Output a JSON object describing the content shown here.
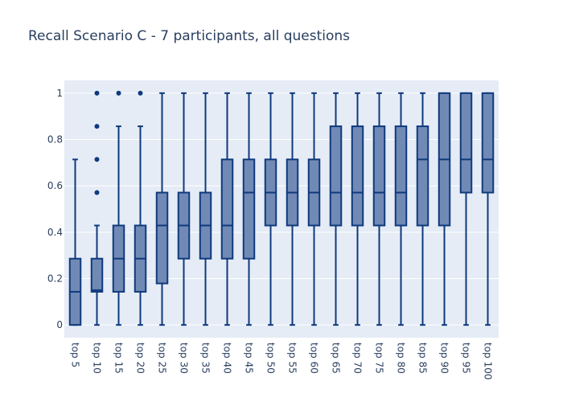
{
  "chart_data": {
    "type": "box",
    "title": "Recall Scenario C - 7 participants, all questions",
    "xlabel": "",
    "ylabel": "",
    "ylim": [
      -0.055,
      1.055
    ],
    "yticks": [
      0,
      0.2,
      0.4,
      0.6,
      0.8,
      1
    ],
    "ytick_labels": [
      "0",
      "0.2",
      "0.4",
      "0.6",
      "0.8",
      "1"
    ],
    "grid": true,
    "legend": "none",
    "colors": {
      "box_fill": "#7189b5",
      "box_line": "#0f3a7d",
      "plot_bg": "#e5ecf6",
      "grid": "#ffffff",
      "text": "#2a3f5f"
    },
    "categories": [
      "top 5",
      "top 10",
      "top 15",
      "top 20",
      "top 25",
      "top 30",
      "top 35",
      "top 40",
      "top 45",
      "top 50",
      "top 55",
      "top 60",
      "top 65",
      "top 70",
      "top 75",
      "top 80",
      "top 85",
      "top 90",
      "top 95",
      "top 100"
    ],
    "boxes": [
      {
        "min": 0,
        "q1": 0,
        "median": 0.143,
        "q3": 0.286,
        "max": 0.714,
        "outliers": []
      },
      {
        "min": 0,
        "q1": 0.143,
        "median": 0.15,
        "q3": 0.286,
        "max": 0.429,
        "outliers": [
          0.571,
          0.714,
          0.857,
          1
        ]
      },
      {
        "min": 0,
        "q1": 0.143,
        "median": 0.286,
        "q3": 0.429,
        "max": 0.857,
        "outliers": [
          1
        ]
      },
      {
        "min": 0,
        "q1": 0.143,
        "median": 0.286,
        "q3": 0.429,
        "max": 0.857,
        "outliers": [
          1
        ]
      },
      {
        "min": 0,
        "q1": 0.179,
        "median": 0.429,
        "q3": 0.571,
        "max": 1,
        "outliers": []
      },
      {
        "min": 0,
        "q1": 0.286,
        "median": 0.429,
        "q3": 0.571,
        "max": 1,
        "outliers": []
      },
      {
        "min": 0,
        "q1": 0.286,
        "median": 0.429,
        "q3": 0.571,
        "max": 1,
        "outliers": []
      },
      {
        "min": 0,
        "q1": 0.286,
        "median": 0.429,
        "q3": 0.714,
        "max": 1,
        "outliers": []
      },
      {
        "min": 0,
        "q1": 0.286,
        "median": 0.571,
        "q3": 0.714,
        "max": 1,
        "outliers": []
      },
      {
        "min": 0,
        "q1": 0.429,
        "median": 0.571,
        "q3": 0.714,
        "max": 1,
        "outliers": []
      },
      {
        "min": 0,
        "q1": 0.429,
        "median": 0.571,
        "q3": 0.714,
        "max": 1,
        "outliers": []
      },
      {
        "min": 0,
        "q1": 0.429,
        "median": 0.571,
        "q3": 0.714,
        "max": 1,
        "outliers": []
      },
      {
        "min": 0,
        "q1": 0.429,
        "median": 0.571,
        "q3": 0.857,
        "max": 1,
        "outliers": []
      },
      {
        "min": 0,
        "q1": 0.429,
        "median": 0.571,
        "q3": 0.857,
        "max": 1,
        "outliers": []
      },
      {
        "min": 0,
        "q1": 0.429,
        "median": 0.571,
        "q3": 0.857,
        "max": 1,
        "outliers": []
      },
      {
        "min": 0,
        "q1": 0.429,
        "median": 0.571,
        "q3": 0.857,
        "max": 1,
        "outliers": []
      },
      {
        "min": 0,
        "q1": 0.429,
        "median": 0.714,
        "q3": 0.857,
        "max": 1,
        "outliers": []
      },
      {
        "min": 0,
        "q1": 0.429,
        "median": 0.714,
        "q3": 1,
        "max": 1,
        "outliers": []
      },
      {
        "min": 0,
        "q1": 0.571,
        "median": 0.714,
        "q3": 1,
        "max": 1,
        "outliers": []
      },
      {
        "min": 0,
        "q1": 0.571,
        "median": 0.714,
        "q3": 1,
        "max": 1,
        "outliers": []
      }
    ]
  }
}
